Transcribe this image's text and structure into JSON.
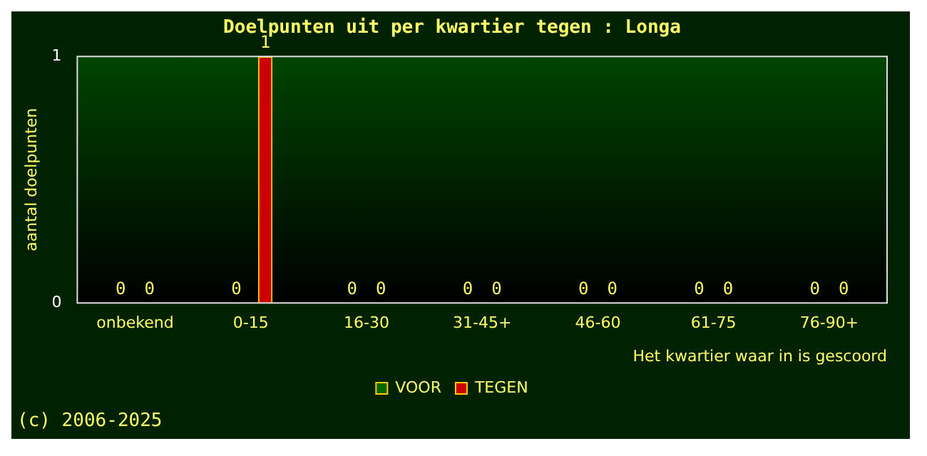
{
  "chart_data": {
    "type": "bar",
    "title": "Doelpunten uit per kwartier tegen : Longa",
    "xlabel": "Het kwartier waar in is gescoord",
    "ylabel": "aantal doelpunten",
    "categories": [
      "onbekend",
      "0-15",
      "16-30",
      "31-45+",
      "46-60",
      "61-75",
      "76-90+"
    ],
    "series": [
      {
        "name": "VOOR",
        "color": "#006600",
        "values": [
          0,
          0,
          0,
          0,
          0,
          0,
          0
        ]
      },
      {
        "name": "TEGEN",
        "color": "#cc0000",
        "values": [
          0,
          1,
          0,
          0,
          0,
          0,
          0
        ]
      }
    ],
    "ylim": [
      0,
      1
    ],
    "yticks": [
      0,
      1
    ],
    "grid": false,
    "legend": "bottom",
    "data_labels": true,
    "annotations": [
      "(c) 2006-2025"
    ]
  }
}
